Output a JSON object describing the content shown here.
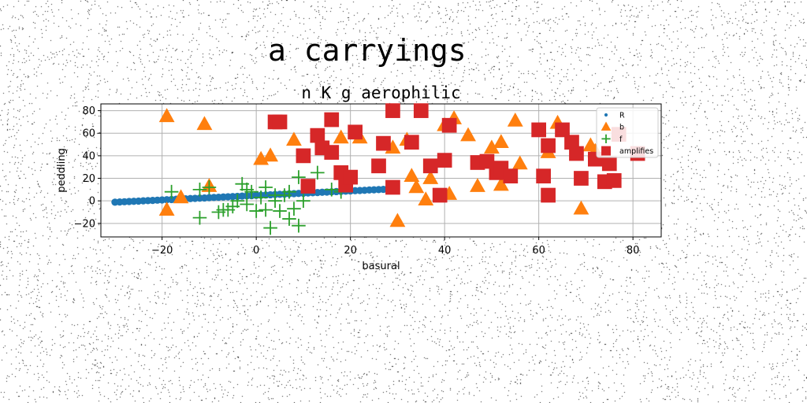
{
  "figure": {
    "suptitle": "a carryings"
  },
  "chart_data": {
    "type": "scatter",
    "title": "n K g aerophilic",
    "xlabel": "basural",
    "ylabel": "peddling",
    "xlim": [
      -33,
      86
    ],
    "ylim": [
      -32,
      86
    ],
    "xticks": [
      -20,
      0,
      20,
      40,
      60,
      80
    ],
    "yticks": [
      -20,
      0,
      20,
      40,
      60,
      80
    ],
    "grid": true,
    "legend_position": "upper-right",
    "series": [
      {
        "name": "R",
        "marker": "circle",
        "color": "#1f77b4",
        "points": [
          [
            -30,
            -1.2
          ],
          [
            -29,
            -1
          ],
          [
            -28,
            -0.8
          ],
          [
            -27,
            -0.6
          ],
          [
            -26,
            -0.4
          ],
          [
            -25,
            -0.2
          ],
          [
            -24,
            0
          ],
          [
            -23,
            0.2
          ],
          [
            -22,
            0.4
          ],
          [
            -21,
            0.6
          ],
          [
            -20,
            0.8
          ],
          [
            -19,
            1
          ],
          [
            -18,
            1.2
          ],
          [
            -17,
            1.4
          ],
          [
            -16,
            1.6
          ],
          [
            -15,
            1.8
          ],
          [
            -14,
            2
          ],
          [
            -13,
            2.2
          ],
          [
            -12,
            2.4
          ],
          [
            -11,
            2.6
          ],
          [
            -10,
            2.8
          ],
          [
            -9,
            3
          ],
          [
            -8,
            3.2
          ],
          [
            -7,
            3.4
          ],
          [
            -6,
            3.6
          ],
          [
            -5,
            3.8
          ],
          [
            -4,
            4
          ],
          [
            -3,
            4.2
          ],
          [
            -2,
            4.4
          ],
          [
            -1,
            4.6
          ],
          [
            0,
            4.8
          ],
          [
            1,
            5
          ],
          [
            2,
            5.2
          ],
          [
            3,
            5.4
          ],
          [
            4,
            5.6
          ],
          [
            5,
            5.8
          ],
          [
            6,
            6
          ],
          [
            7,
            6.2
          ],
          [
            8,
            6.4
          ],
          [
            9,
            6.6
          ],
          [
            10,
            6.8
          ],
          [
            11,
            7
          ],
          [
            12,
            7.2
          ],
          [
            13,
            7.4
          ],
          [
            14,
            7.6
          ],
          [
            15,
            7.8
          ],
          [
            16,
            8
          ],
          [
            17,
            8.2
          ],
          [
            18,
            8.4
          ],
          [
            19,
            8.6
          ],
          [
            20,
            8.8
          ],
          [
            21,
            9
          ],
          [
            22,
            9.2
          ],
          [
            23,
            9.4
          ],
          [
            24,
            9.6
          ],
          [
            25,
            9.8
          ],
          [
            26,
            10
          ],
          [
            27,
            10.2
          ],
          [
            28,
            10.4
          ],
          [
            29,
            10.6
          ]
        ]
      },
      {
        "name": "b",
        "marker": "triangle",
        "color": "#ff7f0e",
        "points": [
          [
            -19,
            75
          ],
          [
            -11,
            68
          ],
          [
            -19,
            -8
          ],
          [
            -16,
            3
          ],
          [
            -10,
            13
          ],
          [
            1,
            37
          ],
          [
            3,
            40
          ],
          [
            8,
            54
          ],
          [
            18,
            56
          ],
          [
            22,
            56
          ],
          [
            29,
            47
          ],
          [
            32,
            54
          ],
          [
            30,
            -18
          ],
          [
            33,
            22
          ],
          [
            34,
            12
          ],
          [
            36,
            1
          ],
          [
            37,
            20
          ],
          [
            40,
            67
          ],
          [
            42,
            73
          ],
          [
            45,
            58
          ],
          [
            47,
            13
          ],
          [
            50,
            47
          ],
          [
            52,
            52
          ],
          [
            55,
            71
          ],
          [
            56,
            33
          ],
          [
            62,
            43
          ],
          [
            64,
            69
          ],
          [
            69,
            -7
          ],
          [
            71,
            49
          ],
          [
            72,
            44
          ],
          [
            52,
            14
          ],
          [
            41,
            6
          ]
        ]
      },
      {
        "name": "f",
        "marker": "plus",
        "color": "#2ca02c",
        "points": [
          [
            -18,
            8
          ],
          [
            -12,
            10
          ],
          [
            -12,
            -15
          ],
          [
            -10,
            12
          ],
          [
            -8,
            -10
          ],
          [
            -7,
            -8
          ],
          [
            -6,
            -8
          ],
          [
            -5,
            -5
          ],
          [
            -4,
            0
          ],
          [
            -3,
            15
          ],
          [
            -2,
            -3
          ],
          [
            -1,
            8
          ],
          [
            0,
            -9
          ],
          [
            1,
            3
          ],
          [
            2,
            -8
          ],
          [
            3,
            -24
          ],
          [
            4,
            0
          ],
          [
            5,
            -9
          ],
          [
            6,
            5
          ],
          [
            7,
            -16
          ],
          [
            8,
            -7
          ],
          [
            9,
            21
          ],
          [
            9,
            -22
          ],
          [
            10,
            0
          ],
          [
            13,
            25
          ],
          [
            16,
            10
          ],
          [
            18,
            8
          ],
          [
            20,
            17
          ],
          [
            2,
            12
          ],
          [
            4,
            5
          ],
          [
            -2,
            10
          ],
          [
            7,
            8
          ]
        ]
      },
      {
        "name": "amplifies",
        "marker": "square",
        "color": "#d62728",
        "points": [
          [
            4,
            70
          ],
          [
            5,
            70
          ],
          [
            10,
            40
          ],
          [
            11,
            13
          ],
          [
            13,
            58
          ],
          [
            14,
            47
          ],
          [
            16,
            43
          ],
          [
            16,
            72
          ],
          [
            18,
            25
          ],
          [
            19,
            14
          ],
          [
            20,
            21
          ],
          [
            21,
            61
          ],
          [
            26,
            31
          ],
          [
            27,
            51
          ],
          [
            29,
            12
          ],
          [
            29,
            80
          ],
          [
            33,
            52
          ],
          [
            35,
            80
          ],
          [
            37,
            31
          ],
          [
            39,
            5
          ],
          [
            40,
            36
          ],
          [
            41,
            67
          ],
          [
            47,
            34
          ],
          [
            49,
            35
          ],
          [
            51,
            25
          ],
          [
            52,
            29
          ],
          [
            54,
            22
          ],
          [
            60,
            63
          ],
          [
            61,
            22
          ],
          [
            62,
            5
          ],
          [
            62,
            49
          ],
          [
            65,
            63
          ],
          [
            67,
            52
          ],
          [
            68,
            42
          ],
          [
            69,
            20
          ],
          [
            72,
            37
          ],
          [
            74,
            17
          ],
          [
            75,
            33
          ],
          [
            76,
            18
          ],
          [
            77,
            59
          ],
          [
            81,
            42
          ]
        ]
      }
    ]
  }
}
